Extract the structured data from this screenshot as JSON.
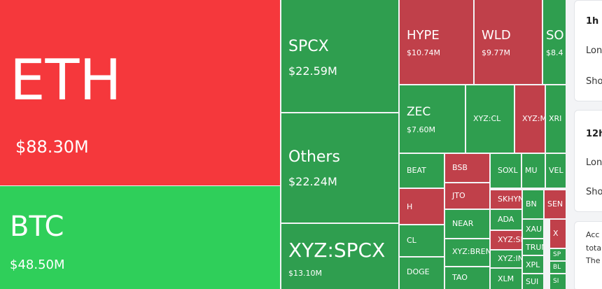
{
  "treemap": {
    "tiles": [
      {
        "label": "ETH",
        "value": "$88.30M",
        "color": "#f5383c"
      },
      {
        "label": "BTC",
        "value": "$48.50M",
        "color": "#2fcf5a"
      },
      {
        "label": "SPCX",
        "value": "$22.59M",
        "color": "#2f9e4f"
      },
      {
        "label": "Others",
        "value": "$22.24M",
        "color": "#2f9e4f"
      },
      {
        "label": "XYZ:SPCX",
        "value": "$13.10M",
        "color": "#2f9e4f"
      },
      {
        "label": "HYPE",
        "value": "$10.74M",
        "color": "#c0404a"
      },
      {
        "label": "WLD",
        "value": "$9.77M",
        "color": "#c0404a"
      },
      {
        "label": "SO",
        "value": "$8.4",
        "color": "#2f9e4f"
      },
      {
        "label": "ZEC",
        "value": "$7.60M",
        "color": "#2f9e4f"
      },
      {
        "label": "XYZ:CL",
        "color": "#2f9e4f"
      },
      {
        "label": "XYZ:M",
        "color": "#c0404a"
      },
      {
        "label": "XRI",
        "color": "#2f9e4f"
      },
      {
        "label": "BEAT",
        "color": "#2f9e4f"
      },
      {
        "label": "BSB",
        "color": "#c0404a"
      },
      {
        "label": "SOXL",
        "color": "#2f9e4f"
      },
      {
        "label": "MU",
        "color": "#2f9e4f"
      },
      {
        "label": "VEL",
        "color": "#2f9e4f"
      },
      {
        "label": "H",
        "color": "#c0404a"
      },
      {
        "label": "JTO",
        "color": "#c0404a"
      },
      {
        "label": "CL",
        "color": "#2f9e4f"
      },
      {
        "label": "NEAR",
        "color": "#2f9e4f"
      },
      {
        "label": "XYZ:BRENT",
        "color": "#2f9e4f"
      },
      {
        "label": "TAO",
        "color": "#2f9e4f"
      },
      {
        "label": "DOGE",
        "color": "#2f9e4f"
      },
      {
        "label": "SKHYNX",
        "color": "#c0404a"
      },
      {
        "label": "ADA",
        "color": "#2f9e4f"
      },
      {
        "label": "XYZ:SI",
        "color": "#c0404a"
      },
      {
        "label": "XYZ:IN",
        "color": "#2f9e4f"
      },
      {
        "label": "XLM",
        "color": "#2f9e4f"
      },
      {
        "label": "BN",
        "color": "#2f9e4f"
      },
      {
        "label": "SEN",
        "color": "#c0404a"
      },
      {
        "label": "XAU",
        "color": "#2f9e4f"
      },
      {
        "label": "X",
        "color": "#c0404a"
      },
      {
        "label": "TRUN",
        "color": "#2f9e4f"
      },
      {
        "label": "XPL",
        "color": "#2f9e4f"
      },
      {
        "label": "SUI",
        "color": "#2f9e4f"
      },
      {
        "label": "SP",
        "color": "#2f9e4f"
      },
      {
        "label": "BL",
        "color": "#2f9e4f"
      },
      {
        "label": "SI",
        "color": "#2f9e4f"
      }
    ]
  },
  "sidebar": {
    "cards": [
      {
        "title": "1h",
        "rows": [
          "Lon",
          "Sho"
        ]
      },
      {
        "title": "12h",
        "rows": [
          "Lon",
          "Sho"
        ]
      },
      {
        "rows": [
          "Acc",
          "tota",
          "The"
        ]
      }
    ]
  }
}
